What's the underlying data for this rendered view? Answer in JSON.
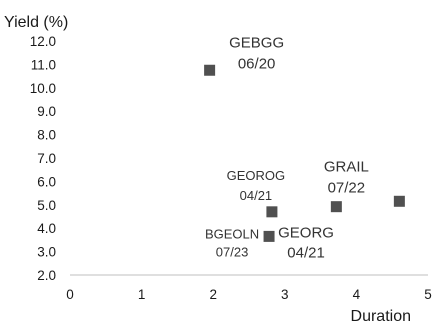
{
  "chart_data": {
    "type": "scatter",
    "ylabel": "Yield (%)",
    "xlabel": "Duration",
    "xlim": [
      0,
      5
    ],
    "ylim": [
      2.0,
      12.0
    ],
    "x_ticks": [
      "0",
      "1",
      "2",
      "3",
      "4",
      "5"
    ],
    "y_ticks": [
      "2.0",
      "3.0",
      "4.0",
      "5.0",
      "6.0",
      "7.0",
      "8.0",
      "9.0",
      "10.0",
      "11.0",
      "12.0"
    ],
    "grid": false,
    "legend": "none",
    "marker_color": "#505050",
    "points": [
      {
        "x": 1.95,
        "y": 10.75,
        "label_line1": "GEBGG",
        "label_line2": "06/20"
      },
      {
        "x": 2.82,
        "y": 4.7,
        "label_line1": "GEOROG",
        "label_line2": "04/21"
      },
      {
        "x": 3.72,
        "y": 4.92,
        "label_line1": "GRAIL",
        "label_line2": "07/22"
      },
      {
        "x": 4.6,
        "y": 5.15,
        "label_line1": "",
        "label_line2": ""
      },
      {
        "x": 2.78,
        "y": 3.65,
        "label_line1": "BGEOLN",
        "label_line2": "07/23"
      },
      {
        "x": 2.78,
        "y": 3.65,
        "label_line1": "GEORG",
        "label_line2": "04/21"
      }
    ]
  }
}
